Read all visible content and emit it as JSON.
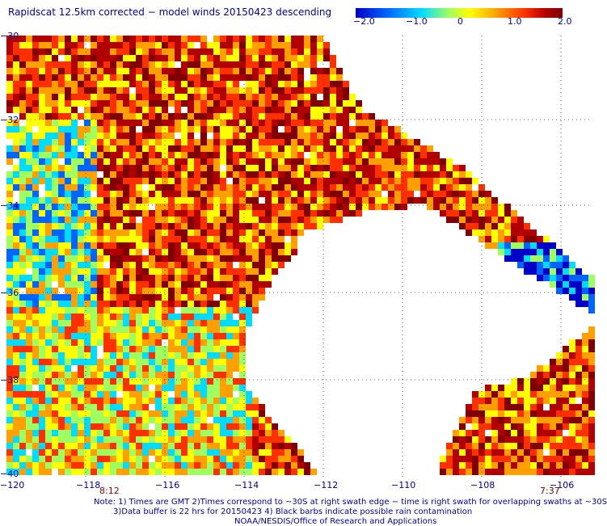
{
  "title": "Rapidscat 12.5km corrected − model winds 20150423 descending",
  "colorbar": {
    "labels": [
      "−2.0",
      "−1.0",
      "0",
      "1.0",
      "2.0"
    ],
    "values": [
      -2.0,
      -1.0,
      0,
      1.0,
      2.0
    ],
    "colors": [
      "#0000c8",
      "#0064ff",
      "#00dcff",
      "#a0ff60",
      "#ffff00",
      "#ffa000",
      "#ff3000",
      "#b00000",
      "#800000"
    ]
  },
  "map": {
    "lon_labels": [
      "−120",
      "−118",
      "−116",
      "−114",
      "−112",
      "−110",
      "−108",
      "−106"
    ],
    "lat_labels": [
      "−30",
      "−32",
      "−34",
      "−36",
      "−38",
      "−40"
    ],
    "lon_range": [
      -120,
      -105
    ],
    "lat_range": [
      -40,
      -30
    ],
    "time_labels": [
      "8:12",
      "7:37"
    ]
  },
  "notes": [
    "Note: 1) Times are GMT 2)Times correspond to ~30S at right swath edge − time is right swath for overlapping swaths at ~30S",
    "3)Data buffer is 22 hrs for 20150423 4) Black barbs indicate possible rain contamination",
    "NOAA/NESDIS/Office of Research and Applications"
  ]
}
